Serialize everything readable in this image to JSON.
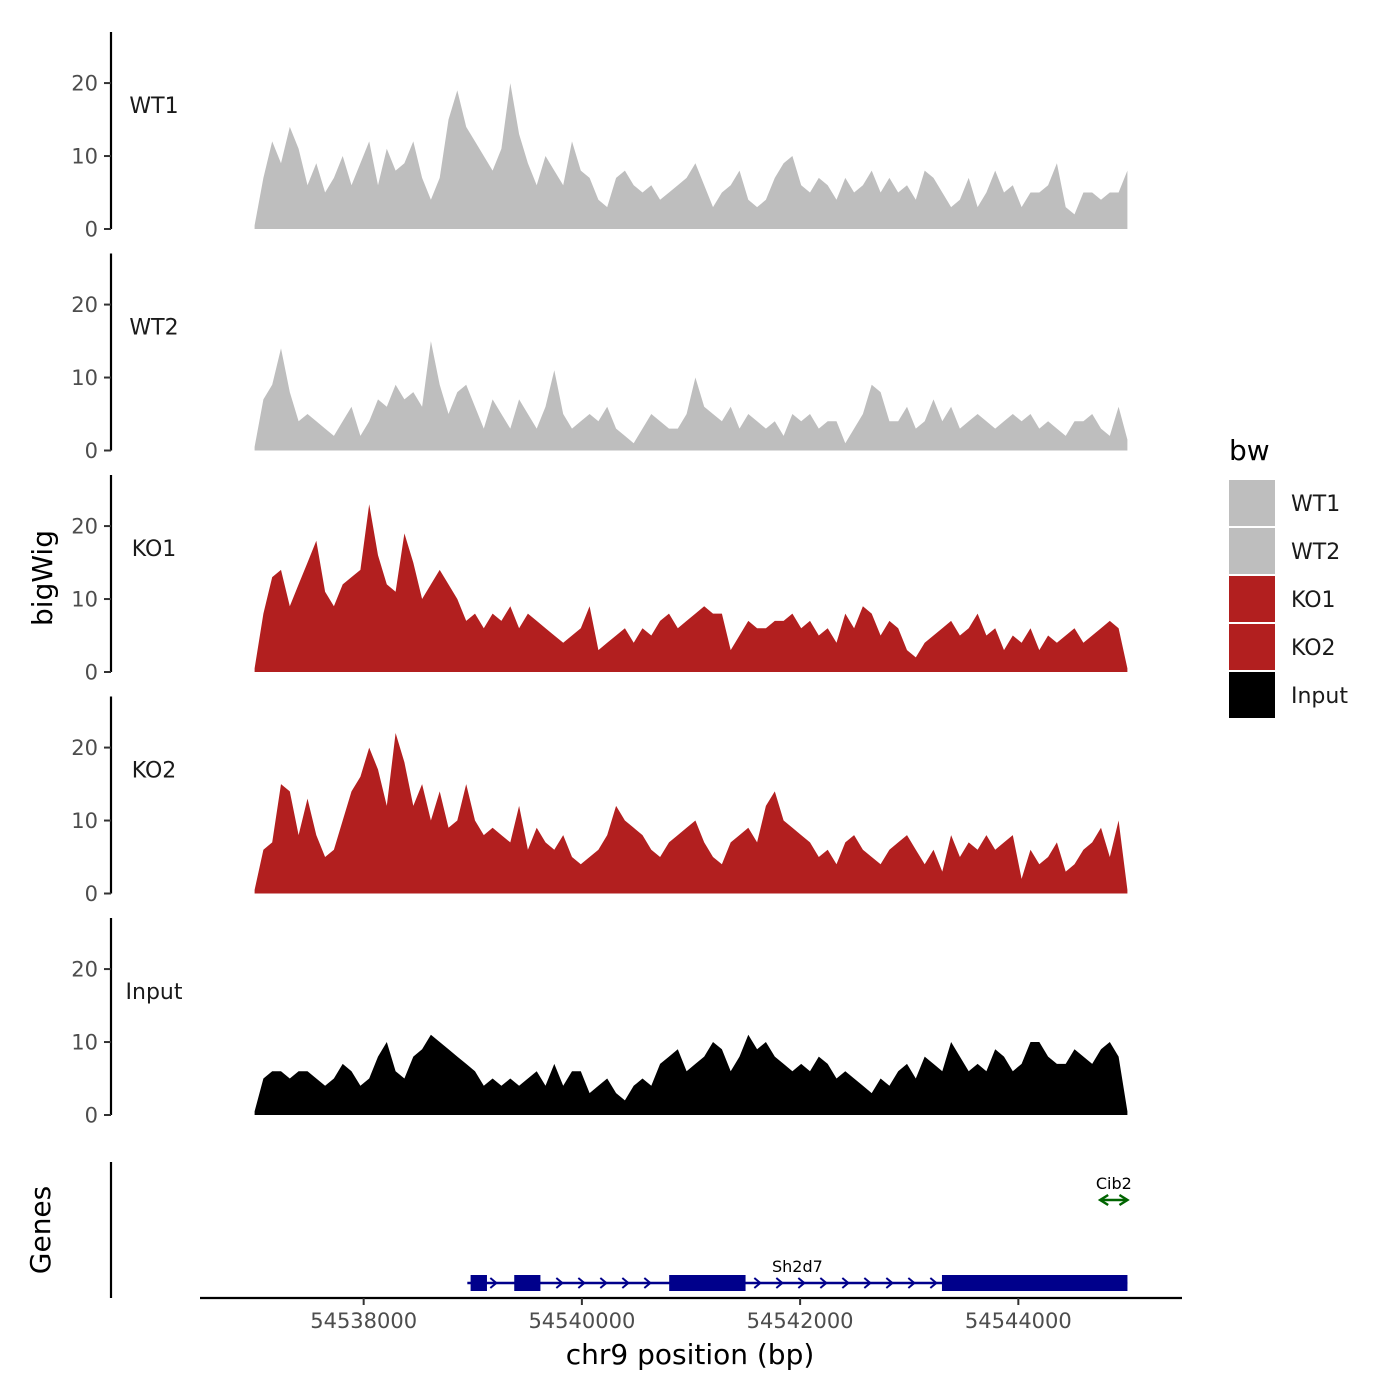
{
  "chart_data": {
    "type": "area",
    "xlabel": "chr9 position (bp)",
    "ylabel": "bigWig",
    "genes_label": "Genes",
    "xlim": [
      54536500,
      54545500
    ],
    "x_ticks": [
      54538000,
      54540000,
      54542000,
      54544000
    ],
    "x_tick_labels": [
      "54538000",
      "54540000",
      "54542000",
      "54544000"
    ],
    "ylim": [
      0,
      27
    ],
    "y_ticks": [
      0,
      10,
      20
    ],
    "y_tick_labels": [
      "0",
      "10",
      "20"
    ],
    "region": [
      54537000,
      54545000
    ],
    "bin_size": 100,
    "legend": {
      "title": "bw",
      "entries": [
        {
          "label": "WT1",
          "color": "#bebebe"
        },
        {
          "label": "WT2",
          "color": "#bebebe"
        },
        {
          "label": "KO1",
          "color": "#b21f1f"
        },
        {
          "label": "KO2",
          "color": "#b21f1f"
        },
        {
          "label": "Input",
          "color": "#000000"
        }
      ]
    },
    "series": [
      {
        "name": "WT1",
        "color": "#bebebe",
        "values": [
          0.5,
          7,
          12,
          9,
          14,
          11,
          6,
          9,
          5,
          7,
          10,
          6,
          9,
          12,
          6,
          11,
          8,
          9,
          12,
          7,
          4,
          7,
          15,
          19,
          14,
          12,
          10,
          8,
          11,
          20,
          13,
          9,
          6,
          10,
          8,
          6,
          12,
          8,
          7,
          4,
          3,
          7,
          8,
          6,
          5,
          6,
          4,
          5,
          6,
          7,
          9,
          6,
          3,
          5,
          6,
          8,
          4,
          3,
          4,
          7,
          9,
          10,
          6,
          5,
          7,
          6,
          4,
          7,
          5,
          6,
          8,
          5,
          7,
          5,
          6,
          4,
          8,
          7,
          5,
          3,
          4,
          7,
          3,
          5,
          8,
          5,
          6,
          3,
          5,
          5,
          6,
          9,
          3,
          2,
          5,
          5,
          4,
          5,
          5,
          8
        ]
      },
      {
        "name": "WT2",
        "color": "#bebebe",
        "values": [
          0.5,
          7,
          9,
          14,
          8,
          4,
          5,
          4,
          3,
          2,
          4,
          6,
          2,
          4,
          7,
          6,
          9,
          7,
          8,
          6,
          15,
          9,
          5,
          8,
          9,
          6,
          3,
          7,
          5,
          3,
          7,
          5,
          3,
          6,
          11,
          5,
          3,
          4,
          5,
          4,
          6,
          3,
          2,
          1,
          3,
          5,
          4,
          3,
          3,
          5,
          10,
          6,
          5,
          4,
          6,
          3,
          5,
          4,
          3,
          4,
          2,
          5,
          4,
          5,
          3,
          4,
          4,
          1,
          3,
          5,
          9,
          8,
          4,
          4,
          6,
          3,
          4,
          7,
          4,
          6,
          3,
          4,
          5,
          4,
          3,
          4,
          5,
          4,
          5,
          3,
          4,
          3,
          2,
          4,
          4,
          5,
          3,
          2,
          6,
          1.5
        ]
      },
      {
        "name": "KO1",
        "color": "#b21f1f",
        "values": [
          0.5,
          8,
          13,
          14,
          9,
          12,
          15,
          18,
          11,
          9,
          12,
          13,
          14,
          23,
          16,
          12,
          11,
          19,
          15,
          10,
          12,
          14,
          12,
          10,
          7,
          8,
          6,
          8,
          7,
          9,
          6,
          8,
          7,
          6,
          5,
          4,
          5,
          6,
          9,
          3,
          4,
          5,
          6,
          4,
          6,
          5,
          7,
          8,
          6,
          7,
          8,
          9,
          8,
          8,
          3,
          5,
          7,
          6,
          6,
          7,
          7,
          8,
          6,
          7,
          5,
          6,
          4,
          8,
          6,
          9,
          8,
          5,
          7,
          6,
          3,
          2,
          4,
          5,
          6,
          7,
          5,
          6,
          8,
          5,
          6,
          3,
          5,
          4,
          6,
          3,
          5,
          4,
          5,
          6,
          4,
          5,
          6,
          7,
          6,
          0.5
        ]
      },
      {
        "name": "KO2",
        "color": "#b21f1f",
        "values": [
          0.5,
          6,
          7,
          15,
          14,
          8,
          13,
          8,
          5,
          6,
          10,
          14,
          16,
          20,
          17,
          12,
          22,
          18,
          12,
          15,
          10,
          14,
          9,
          10,
          15,
          10,
          8,
          9,
          8,
          7,
          12,
          6,
          9,
          7,
          6,
          8,
          5,
          4,
          5,
          6,
          8,
          12,
          10,
          9,
          8,
          6,
          5,
          7,
          8,
          9,
          10,
          7,
          5,
          4,
          7,
          8,
          9,
          7,
          12,
          14,
          10,
          9,
          8,
          7,
          5,
          6,
          4,
          7,
          8,
          6,
          5,
          4,
          6,
          7,
          8,
          6,
          4,
          6,
          3,
          8,
          5,
          7,
          6,
          8,
          6,
          7,
          8,
          2,
          6,
          4,
          5,
          7,
          3,
          4,
          6,
          7,
          9,
          5,
          10,
          0.5
        ]
      },
      {
        "name": "Input",
        "color": "#000000",
        "values": [
          0.5,
          5,
          6,
          6,
          5,
          6,
          6,
          5,
          4,
          5,
          7,
          6,
          4,
          5,
          8,
          10,
          6,
          5,
          8,
          9,
          11,
          10,
          9,
          8,
          7,
          6,
          4,
          5,
          4,
          5,
          4,
          5,
          6,
          4,
          7,
          4,
          6,
          6,
          3,
          4,
          5,
          3,
          2,
          4,
          5,
          4,
          7,
          8,
          9,
          6,
          7,
          8,
          10,
          9,
          6,
          8,
          11,
          9,
          10,
          8,
          7,
          6,
          7,
          6,
          8,
          7,
          5,
          6,
          5,
          4,
          3,
          5,
          4,
          6,
          7,
          5,
          8,
          7,
          6,
          10,
          8,
          6,
          7,
          6,
          9,
          8,
          6,
          7,
          10,
          10,
          8,
          7,
          7,
          9,
          8,
          7,
          9,
          10,
          8,
          0.5
        ]
      }
    ],
    "genes": [
      {
        "name": "Sh2d7",
        "color": "#00008b",
        "strand": "+",
        "start": 54538950,
        "end": 54545000,
        "exons": [
          [
            54538980,
            54539130
          ],
          [
            54539380,
            54539620
          ],
          [
            54540800,
            54541500
          ],
          [
            54543300,
            54545000
          ]
        ]
      },
      {
        "name": "Cib2",
        "color": "#006400",
        "strand": "-",
        "start": 54544750,
        "end": 54545000,
        "exons": []
      }
    ]
  }
}
